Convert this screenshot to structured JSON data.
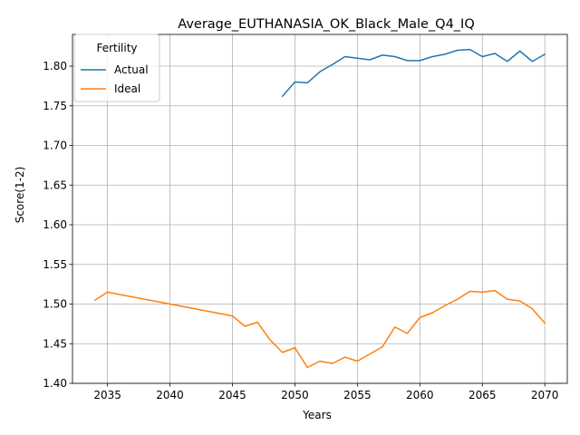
{
  "chart_data": {
    "type": "line",
    "title": "Average_EUTHANASIA_OK_Black_Male_Q4_IQ",
    "xlabel": "Years",
    "ylabel": "Score(1-2)",
    "xlim": [
      2032.2,
      2071.8
    ],
    "ylim": [
      1.4,
      1.84
    ],
    "xticks": [
      2035,
      2040,
      2045,
      2050,
      2055,
      2060,
      2065,
      2070
    ],
    "yticks": [
      1.4,
      1.45,
      1.5,
      1.55,
      1.6,
      1.65,
      1.7,
      1.75,
      1.8
    ],
    "grid": true,
    "legend": {
      "title": "Fertility",
      "placement": "top-left"
    },
    "series": [
      {
        "name": "Actual",
        "color": "#1f77b4",
        "x": [
          2049,
          2050,
          2051,
          2052,
          2053,
          2054,
          2055,
          2056,
          2057,
          2058,
          2059,
          2060,
          2061,
          2062,
          2063,
          2064,
          2065,
          2066,
          2067,
          2068,
          2069,
          2070
        ],
        "y": [
          1.762,
          1.78,
          1.779,
          1.793,
          1.802,
          1.812,
          1.81,
          1.808,
          1.814,
          1.812,
          1.807,
          1.807,
          1.812,
          1.815,
          1.82,
          1.821,
          1.812,
          1.816,
          1.806,
          1.819,
          1.806,
          1.815
        ]
      },
      {
        "name": "Ideal",
        "color": "#ff7f0e",
        "x": [
          2034,
          2035,
          2036,
          2037,
          2038,
          2039,
          2040,
          2041,
          2042,
          2043,
          2044,
          2045,
          2046,
          2047,
          2048,
          2049,
          2050,
          2051,
          2052,
          2053,
          2054,
          2055,
          2056,
          2057,
          2058,
          2059,
          2060,
          2061,
          2062,
          2063,
          2064,
          2065,
          2066,
          2067,
          2068,
          2069,
          2070
        ],
        "y": [
          1.505,
          1.515,
          1.512,
          1.509,
          1.506,
          1.503,
          1.5,
          1.497,
          1.494,
          1.491,
          1.488,
          1.485,
          1.472,
          1.477,
          1.455,
          1.439,
          1.445,
          1.42,
          1.428,
          1.425,
          1.433,
          1.428,
          1.437,
          1.446,
          1.471,
          1.463,
          1.483,
          1.489,
          1.498,
          1.506,
          1.516,
          1.515,
          1.517,
          1.506,
          1.504,
          1.494,
          1.476
        ]
      }
    ]
  }
}
